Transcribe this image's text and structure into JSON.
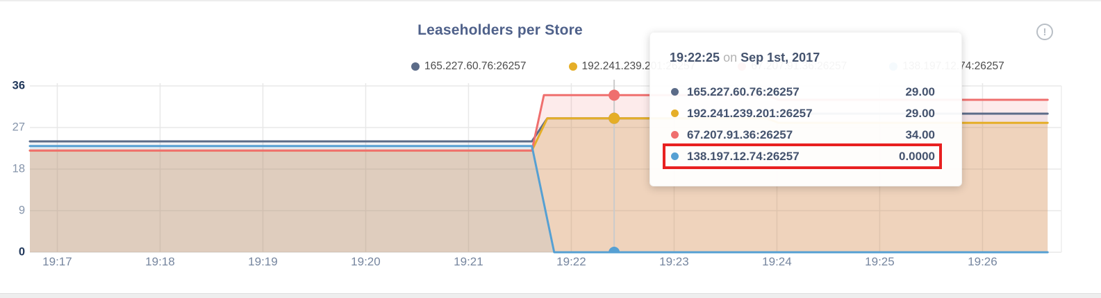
{
  "title": "Leaseholders per Store",
  "info_icon": {
    "glyph": "!",
    "name": "circled-exclamation"
  },
  "legend": {
    "items": [
      {
        "label": "165.227.60.76:26257",
        "color": "#5b6b88"
      },
      {
        "label": "192.241.239.201:26257",
        "color": "#e5ae27"
      },
      {
        "label": "67.207.91.36:26257",
        "color": "#ef6f6e"
      },
      {
        "label": "138.197.12.74:26257",
        "color": "#56a0d3"
      }
    ]
  },
  "tooltip": {
    "time": "19:22:25",
    "on_word": "on",
    "date": "Sep 1st, 2017",
    "highlight_color": "#e82020",
    "rows": [
      {
        "label": "165.227.60.76:26257",
        "value": "29.00",
        "color": "#5b6b88",
        "highlighted": false
      },
      {
        "label": "192.241.239.201:26257",
        "value": "29.00",
        "color": "#e5ae27",
        "highlighted": false
      },
      {
        "label": "67.207.91.36:26257",
        "value": "34.00",
        "color": "#ef6f6e",
        "highlighted": false
      },
      {
        "label": "138.197.12.74:26257",
        "value": "0.0000",
        "color": "#56a0d3",
        "highlighted": true
      }
    ]
  },
  "chart_data": {
    "type": "area",
    "title": "Leaseholders per Store",
    "xlabel": "",
    "ylabel": "",
    "ylim": [
      0,
      36
    ],
    "y_ticks": [
      {
        "value": 36,
        "strong": true
      },
      {
        "value": 27,
        "strong": false
      },
      {
        "value": 18,
        "strong": false
      },
      {
        "value": 9,
        "strong": false
      },
      {
        "value": 0,
        "strong": true
      }
    ],
    "x_start_time": "19:16:44",
    "x_end_time": "19:26:38",
    "x_ticks": [
      {
        "label": "19:17",
        "t": 16
      },
      {
        "label": "19:18",
        "t": 76
      },
      {
        "label": "19:19",
        "t": 136
      },
      {
        "label": "19:20",
        "t": 196
      },
      {
        "label": "19:21",
        "t": 256
      },
      {
        "label": "19:22",
        "t": 316
      },
      {
        "label": "19:23",
        "t": 376
      },
      {
        "label": "19:24",
        "t": 436
      },
      {
        "label": "19:25",
        "t": 496
      },
      {
        "label": "19:26",
        "t": 556
      }
    ],
    "grid": true,
    "legend_position": "top",
    "series": [
      {
        "name": "165.227.60.76:26257",
        "color": "#5b6b88",
        "fill_opacity": 0.08,
        "points": [
          [
            0,
            24
          ],
          [
            293,
            24
          ],
          [
            302,
            29
          ],
          [
            430,
            29
          ],
          [
            437,
            30
          ],
          [
            594,
            30
          ]
        ]
      },
      {
        "name": "192.241.239.201:26257",
        "color": "#e5ae27",
        "fill_opacity": 0.22,
        "points": [
          [
            0,
            22
          ],
          [
            293,
            22
          ],
          [
            302,
            29
          ],
          [
            430,
            29
          ],
          [
            437,
            28
          ],
          [
            594,
            28
          ]
        ]
      },
      {
        "name": "67.207.91.36:26257",
        "color": "#ef6f6e",
        "fill_opacity": 0.14,
        "points": [
          [
            0,
            22
          ],
          [
            293,
            22
          ],
          [
            300,
            34
          ],
          [
            430,
            34
          ],
          [
            437,
            33
          ],
          [
            594,
            33
          ]
        ]
      },
      {
        "name": "138.197.12.74:26257",
        "color": "#56a0d3",
        "fill_opacity": 0.1,
        "points": [
          [
            0,
            23
          ],
          [
            293,
            23
          ],
          [
            306,
            0
          ],
          [
            594,
            0
          ]
        ]
      }
    ],
    "hover": {
      "t": 341,
      "time_label": "19:22:25",
      "values": [
        {
          "name": "165.227.60.76:26257",
          "value": 29
        },
        {
          "name": "192.241.239.201:26257",
          "value": 29
        },
        {
          "name": "67.207.91.36:26257",
          "value": 34
        },
        {
          "name": "138.197.12.74:26257",
          "value": 0
        }
      ]
    }
  }
}
